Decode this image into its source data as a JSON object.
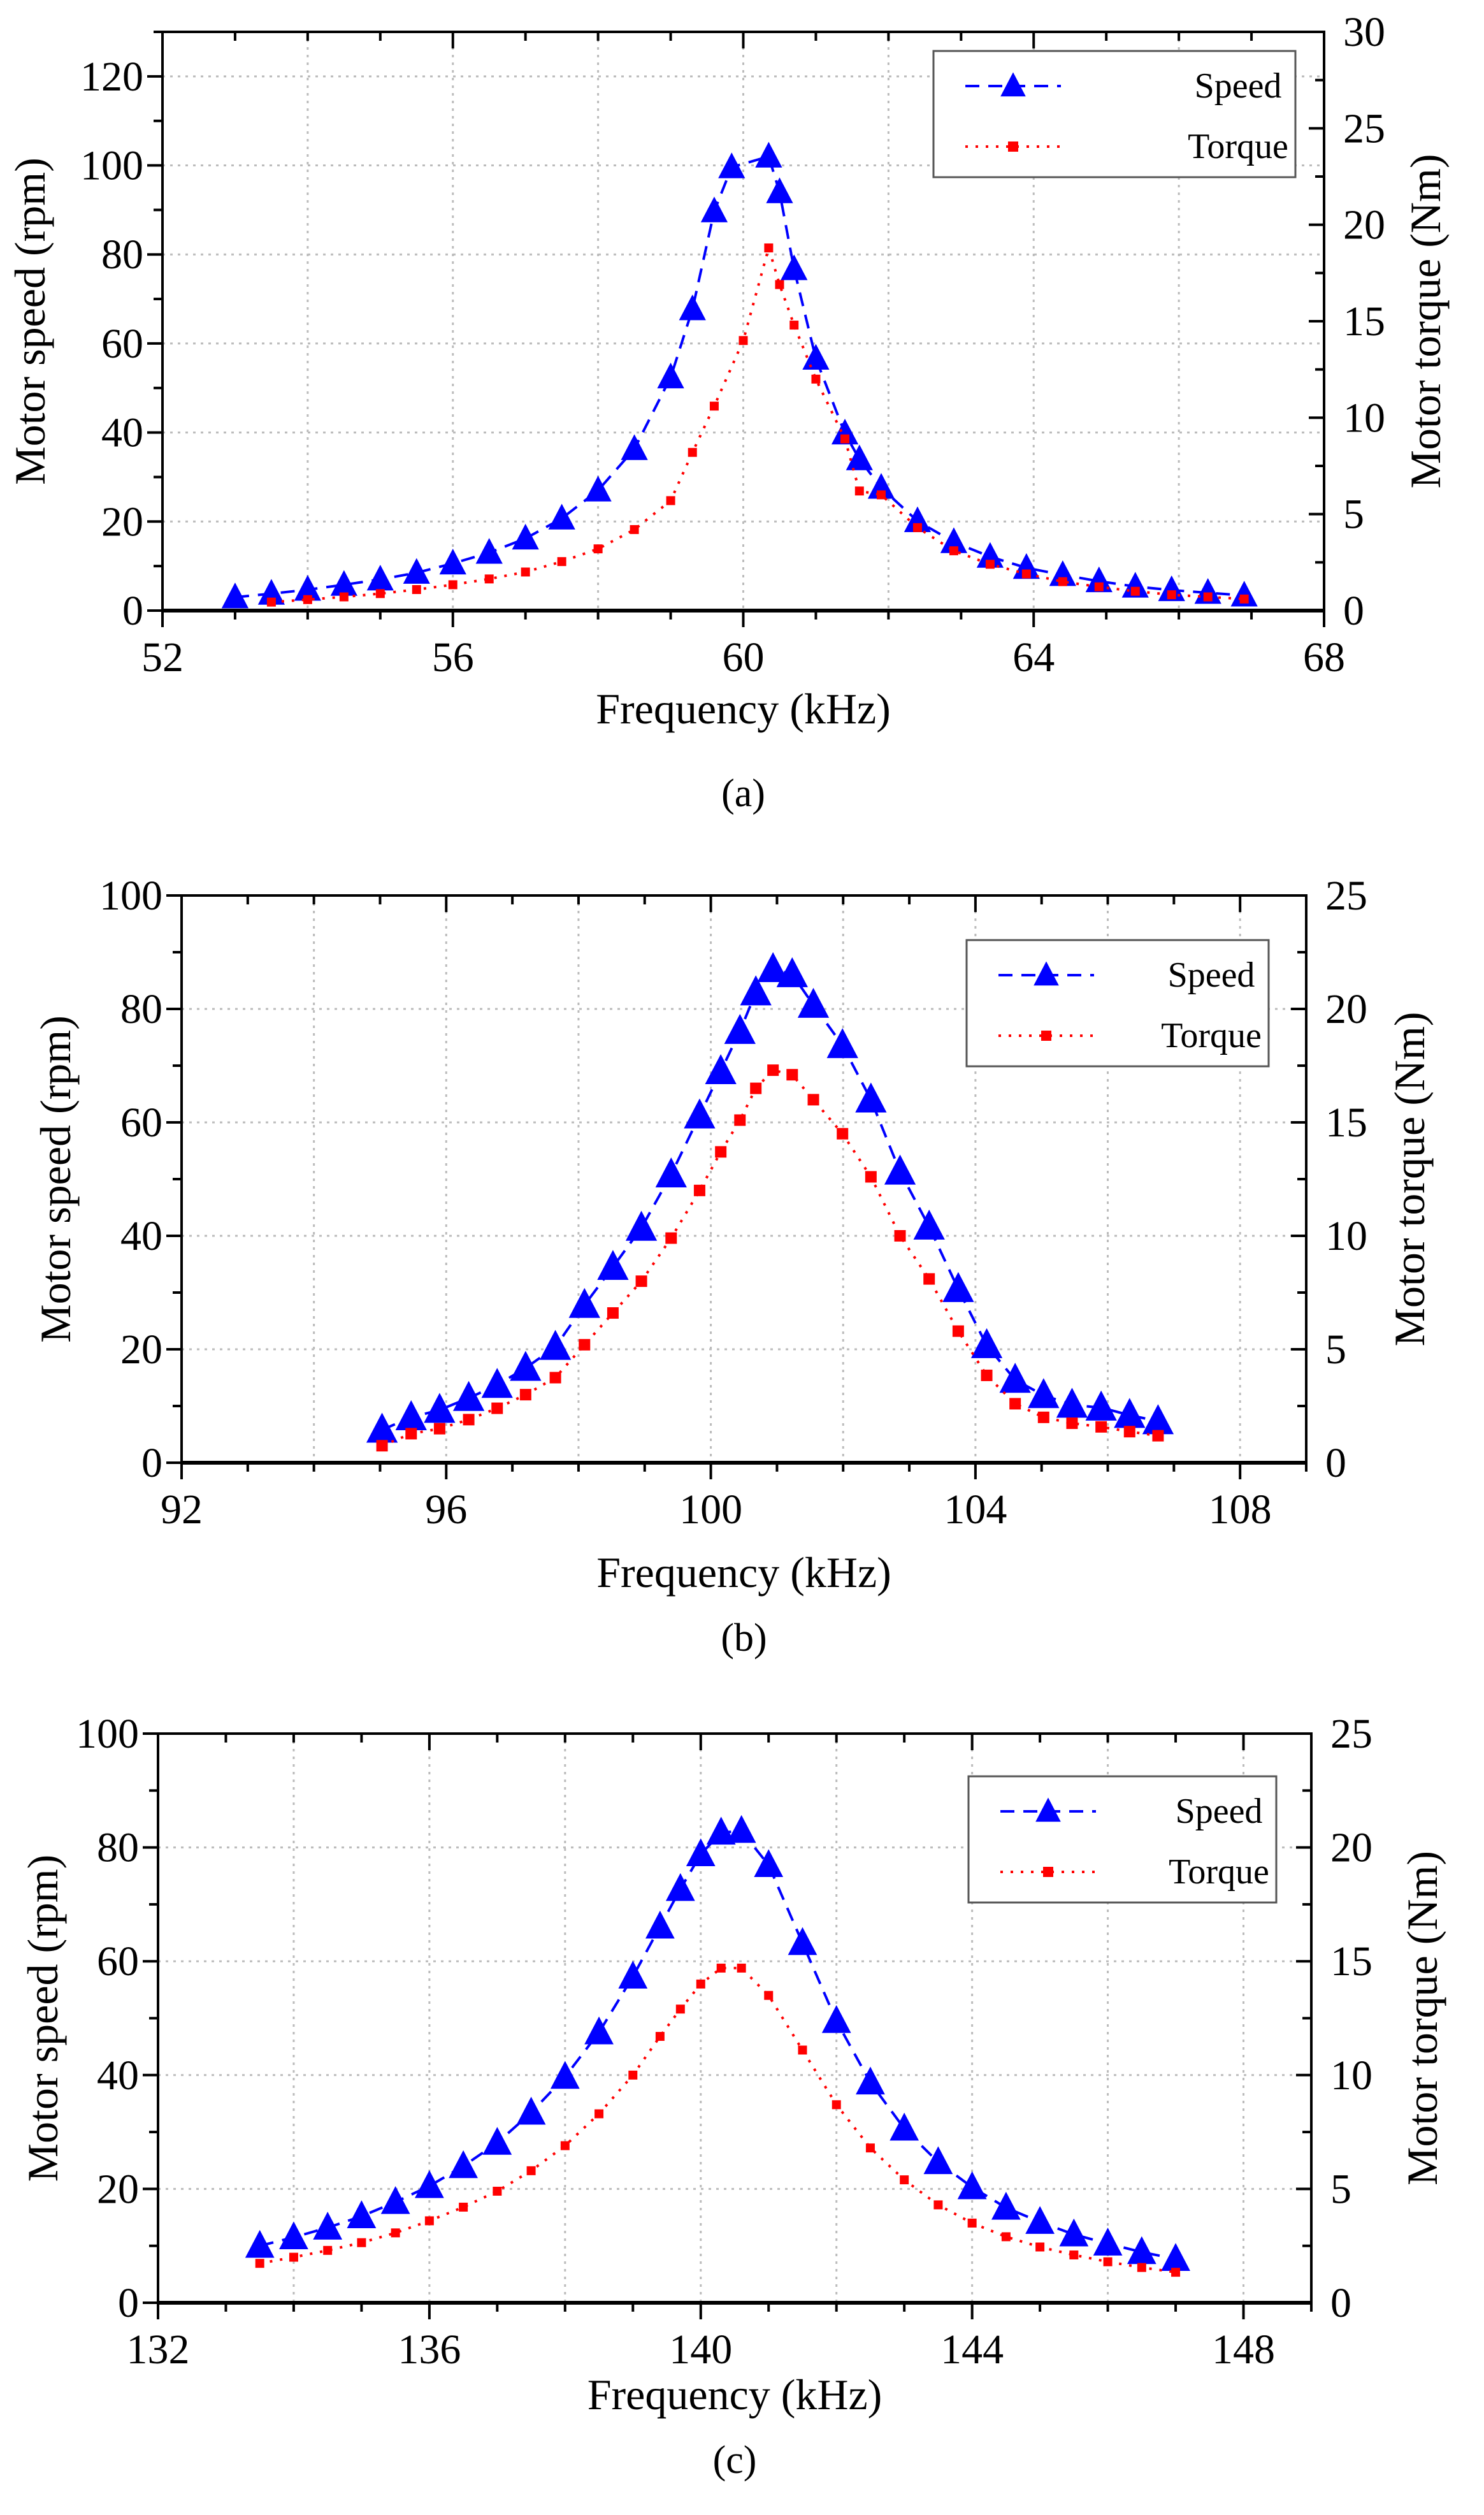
{
  "colors": {
    "speed": "#0000ff",
    "torque": "#ff0000",
    "grid": "#bbbbbb"
  },
  "chart_data": [
    {
      "type": "line",
      "caption": "(a)",
      "xlabel": "Frequency (kHz)",
      "ylabel": "Motor speed (rpm)",
      "y2label": "Motor torque (Nm)",
      "xlim": [
        52,
        68
      ],
      "ylim": [
        0,
        130
      ],
      "y2lim": [
        0,
        30
      ],
      "xticks": [
        52,
        56,
        60,
        64,
        68
      ],
      "yticks": [
        0,
        20,
        40,
        60,
        80,
        100,
        120
      ],
      "y2ticks": [
        0,
        5,
        10,
        15,
        20,
        25,
        30
      ],
      "grid": true,
      "legend_position": "top-right",
      "series": [
        {
          "name": "Speed",
          "axis": "left",
          "marker": "triangle",
          "x": [
            53,
            53.5,
            54,
            54.5,
            55,
            55.5,
            56,
            56.5,
            57,
            57.5,
            58,
            58.5,
            59,
            59.3,
            59.6,
            59.84,
            60.35,
            60.5,
            60.7,
            61,
            61.4,
            61.6,
            61.9,
            62.4,
            62.9,
            63.4,
            63.9,
            64.4,
            64.9,
            65.4,
            65.9,
            66.4,
            66.9
          ],
          "y": [
            3,
            3.8,
            4.7,
            5.8,
            7,
            8.5,
            10.6,
            13,
            16.2,
            20.7,
            27,
            36.3,
            52.4,
            67.7,
            89.7,
            99.6,
            102,
            94,
            76.7,
            56.6,
            39.8,
            34,
            27.6,
            20.1,
            15.4,
            12.1,
            9.6,
            8,
            6.6,
            5.4,
            4.6,
            4,
            3.4
          ]
        },
        {
          "name": "Torque",
          "axis": "right",
          "marker": "square",
          "x": [
            53.5,
            54,
            54.5,
            55,
            55.5,
            56,
            56.5,
            57,
            57.5,
            58,
            58.5,
            59,
            59.3,
            59.6,
            60,
            60.35,
            60.5,
            60.7,
            61,
            61.4,
            61.6,
            61.9,
            62.4,
            62.9,
            63.4,
            63.9,
            64.4,
            64.9,
            65.4,
            65.9,
            66.4,
            66.9
          ],
          "y": [
            0.44,
            0.57,
            0.71,
            0.88,
            1.09,
            1.34,
            1.64,
            2.0,
            2.54,
            3.2,
            4.2,
            5.7,
            8.2,
            10.6,
            14.0,
            18.8,
            16.9,
            14.8,
            12.0,
            8.9,
            6.2,
            6.0,
            4.3,
            3.1,
            2.4,
            1.9,
            1.5,
            1.23,
            1.0,
            0.82,
            0.71,
            0.6
          ]
        }
      ]
    },
    {
      "type": "line",
      "caption": "(b)",
      "xlabel": "Frequency (kHz)",
      "ylabel": "Motor speed (rpm)",
      "y2label": "Motor torque (Nm)",
      "xlim": [
        92,
        109
      ],
      "ylim": [
        0,
        100
      ],
      "y2lim": [
        0,
        25
      ],
      "xticks": [
        92,
        96,
        100,
        104,
        108
      ],
      "yticks": [
        0,
        20,
        40,
        60,
        80,
        100
      ],
      "y2ticks": [
        0,
        5,
        10,
        15,
        20,
        25
      ],
      "grid": true,
      "legend_position": "top-right",
      "series": [
        {
          "name": "Speed",
          "axis": "left",
          "marker": "triangle",
          "x": [
            95.03,
            95.47,
            95.9,
            96.34,
            96.77,
            97.2,
            97.65,
            98.09,
            98.52,
            98.95,
            99.4,
            99.83,
            100.15,
            100.44,
            100.68,
            100.94,
            101.23,
            101.55,
            101.99,
            102.42,
            102.86,
            103.3,
            103.74,
            104.17,
            104.6,
            105.03,
            105.46,
            105.9,
            106.33,
            106.76
          ],
          "y": [
            5.8,
            8,
            9.3,
            11.4,
            13.7,
            16.7,
            20.4,
            27.8,
            34.5,
            41.4,
            50.8,
            61.2,
            69,
            76.1,
            82.9,
            87,
            86.1,
            80.7,
            73.6,
            64,
            51.3,
            41.6,
            30.6,
            20.7,
            14.6,
            11.9,
            10.2,
            9.7,
            8.4,
            7.3
          ]
        },
        {
          "name": "Torque",
          "axis": "right",
          "marker": "square",
          "x": [
            95.03,
            95.47,
            95.9,
            96.34,
            96.77,
            97.2,
            97.65,
            98.09,
            98.52,
            98.95,
            99.4,
            99.83,
            100.15,
            100.44,
            100.68,
            100.94,
            101.23,
            101.55,
            101.99,
            102.42,
            102.86,
            103.3,
            103.74,
            104.17,
            104.6,
            105.03,
            105.46,
            105.9,
            106.33,
            106.76
          ],
          "y": [
            0.75,
            1.28,
            1.5,
            1.9,
            2.4,
            3.0,
            3.75,
            5.2,
            6.6,
            8.0,
            9.9,
            12.0,
            13.7,
            15.1,
            16.5,
            17.3,
            17.1,
            16.0,
            14.5,
            12.6,
            10.0,
            8.1,
            5.8,
            3.85,
            2.6,
            2.0,
            1.74,
            1.58,
            1.37,
            1.19
          ]
        }
      ]
    },
    {
      "type": "line",
      "caption": "(c)",
      "xlabel": "Frequency (kHz)",
      "ylabel": "Motor speed (rpm)",
      "y2label": "Motor torque (Nm)",
      "xlim": [
        132,
        149
      ],
      "ylim": [
        0,
        100
      ],
      "y2lim": [
        0,
        25
      ],
      "xticks": [
        132,
        136,
        140,
        144,
        148
      ],
      "yticks": [
        0,
        20,
        40,
        60,
        80,
        100
      ],
      "y2ticks": [
        0,
        5,
        10,
        15,
        20,
        25
      ],
      "grid": true,
      "legend_position": "top-right",
      "series": [
        {
          "name": "Speed",
          "axis": "left",
          "marker": "triangle",
          "x": [
            133.5,
            134,
            134.5,
            135,
            135.5,
            136,
            136.5,
            137,
            137.5,
            138,
            138.5,
            139,
            139.4,
            139.7,
            140,
            140.3,
            140.6,
            141,
            141.5,
            142,
            142.5,
            143,
            143.5,
            144,
            144.5,
            145,
            145.5,
            146,
            146.5,
            147
          ],
          "y": [
            10,
            11.5,
            13.2,
            15.2,
            17.7,
            20.5,
            24,
            28.1,
            33.4,
            39.7,
            47.5,
            57.3,
            66.1,
            72.7,
            78.8,
            82.6,
            82.9,
            76.9,
            63.2,
            49.5,
            38.7,
            30.6,
            24.7,
            20.3,
            16.7,
            14.2,
            12,
            10.4,
            8.9,
            7.7
          ]
        },
        {
          "name": "Torque",
          "axis": "right",
          "marker": "square",
          "x": [
            133.5,
            134,
            134.5,
            135,
            135.5,
            136,
            136.5,
            137,
            137.5,
            138,
            138.5,
            139,
            139.4,
            139.7,
            140,
            140.3,
            140.6,
            141,
            141.5,
            142,
            142.5,
            143,
            143.5,
            144,
            144.5,
            145,
            145.5,
            146,
            146.5,
            147
          ],
          "y": [
            1.73,
            2.0,
            2.3,
            2.64,
            3.07,
            3.6,
            4.2,
            4.9,
            5.8,
            6.9,
            8.3,
            10.0,
            11.7,
            12.9,
            14.0,
            14.7,
            14.7,
            13.5,
            11.1,
            8.7,
            6.8,
            5.4,
            4.3,
            3.5,
            2.9,
            2.45,
            2.1,
            1.8,
            1.55,
            1.34
          ]
        }
      ]
    }
  ]
}
